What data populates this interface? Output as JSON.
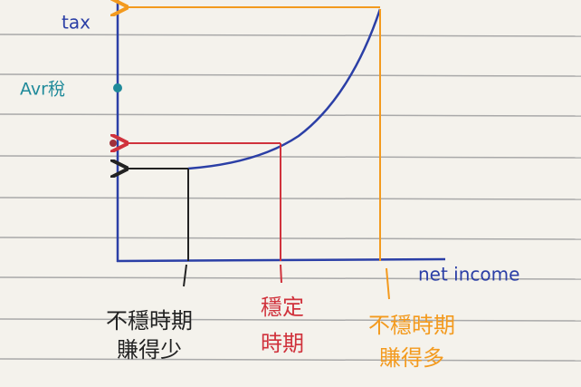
{
  "axes": {
    "y_label": "tax",
    "x_label": "net income"
  },
  "markers": {
    "average": "Avr稅"
  },
  "labels": [
    {
      "lines": [
        "不穩時期",
        "賺得少"
      ]
    },
    {
      "lines": [
        "穩定",
        "時期"
      ]
    },
    {
      "lines": [
        "不穩時期",
        "賺得多"
      ]
    }
  ]
}
